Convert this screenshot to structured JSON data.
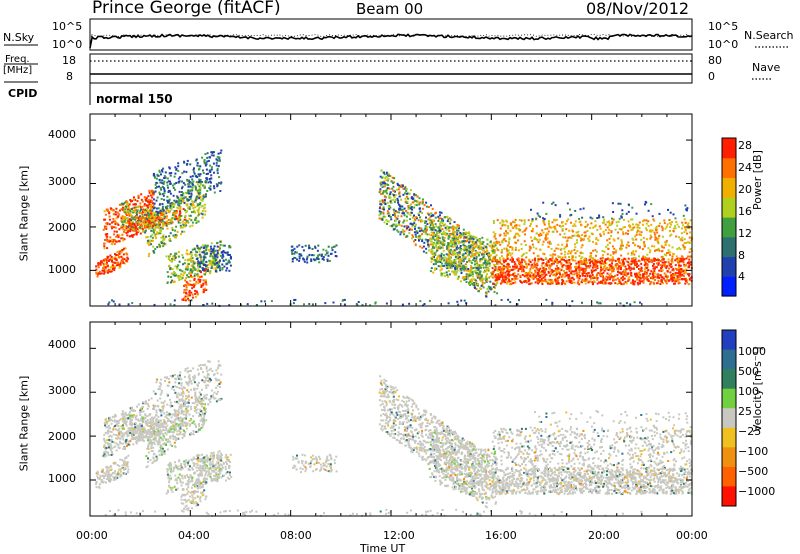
{
  "header": {
    "station": "Prince George (fitACF)",
    "beam": "Beam 00",
    "date": "08/Nov/2012"
  },
  "strip_panels": {
    "nsky_label": "N.Sky",
    "nsky_ticks": [
      "10^5",
      "10^0"
    ],
    "nsearch_label": "N.Search",
    "nsearch_ticks": [
      "10^5",
      "10^0"
    ],
    "freq_label": "Freq.",
    "freq_unit": "[MHz]",
    "freq_ticks": [
      "18",
      "8"
    ],
    "nave_label": "Nave",
    "nave_ticks": [
      "80",
      "0"
    ],
    "cpid_label": "CPID",
    "cpid_value": "normal 150"
  },
  "chart_data": [
    {
      "type": "heatmap",
      "quantity": "power",
      "ylabel": "Slant Range [km]",
      "yticks": [
        "1000",
        "2000",
        "3000",
        "4000"
      ],
      "ylim": [
        180,
        4600
      ],
      "xlim": [
        0,
        24
      ],
      "colorbar_label": "Power [dB]",
      "colorbar_ticks": [
        "4",
        "8",
        "12",
        "16",
        "20",
        "24",
        "28"
      ],
      "colorbar_range": [
        0,
        32
      ],
      "colorbar_colors": [
        "#0020ff",
        "#2040b0",
        "#2e6f6f",
        "#40a040",
        "#b0d020",
        "#f0b000",
        "#ff7000",
        "#ff2000"
      ]
    },
    {
      "type": "heatmap",
      "quantity": "velocity",
      "ylabel": "Slant Range [km]",
      "yticks": [
        "1000",
        "2000",
        "3000",
        "4000"
      ],
      "ylim": [
        180,
        4600
      ],
      "xlim": [
        0,
        24
      ],
      "colorbar_label": "Velocity [m s⁻¹]",
      "colorbar_ticks": [
        "1000",
        "500",
        "100",
        "25",
        "−25",
        "−100",
        "−500",
        "−1000"
      ],
      "colorbar_colors": [
        "#2040c0",
        "#2e6f8f",
        "#308060",
        "#70d040",
        "#c8c8c0",
        "#f0c020",
        "#f09010",
        "#ff6000",
        "#ff1000"
      ]
    }
  ],
  "xaxis": {
    "ticks": [
      "00:00",
      "04:00",
      "08:00",
      "12:00",
      "16:00",
      "20:00",
      "00:00"
    ],
    "label": "Time UT"
  }
}
